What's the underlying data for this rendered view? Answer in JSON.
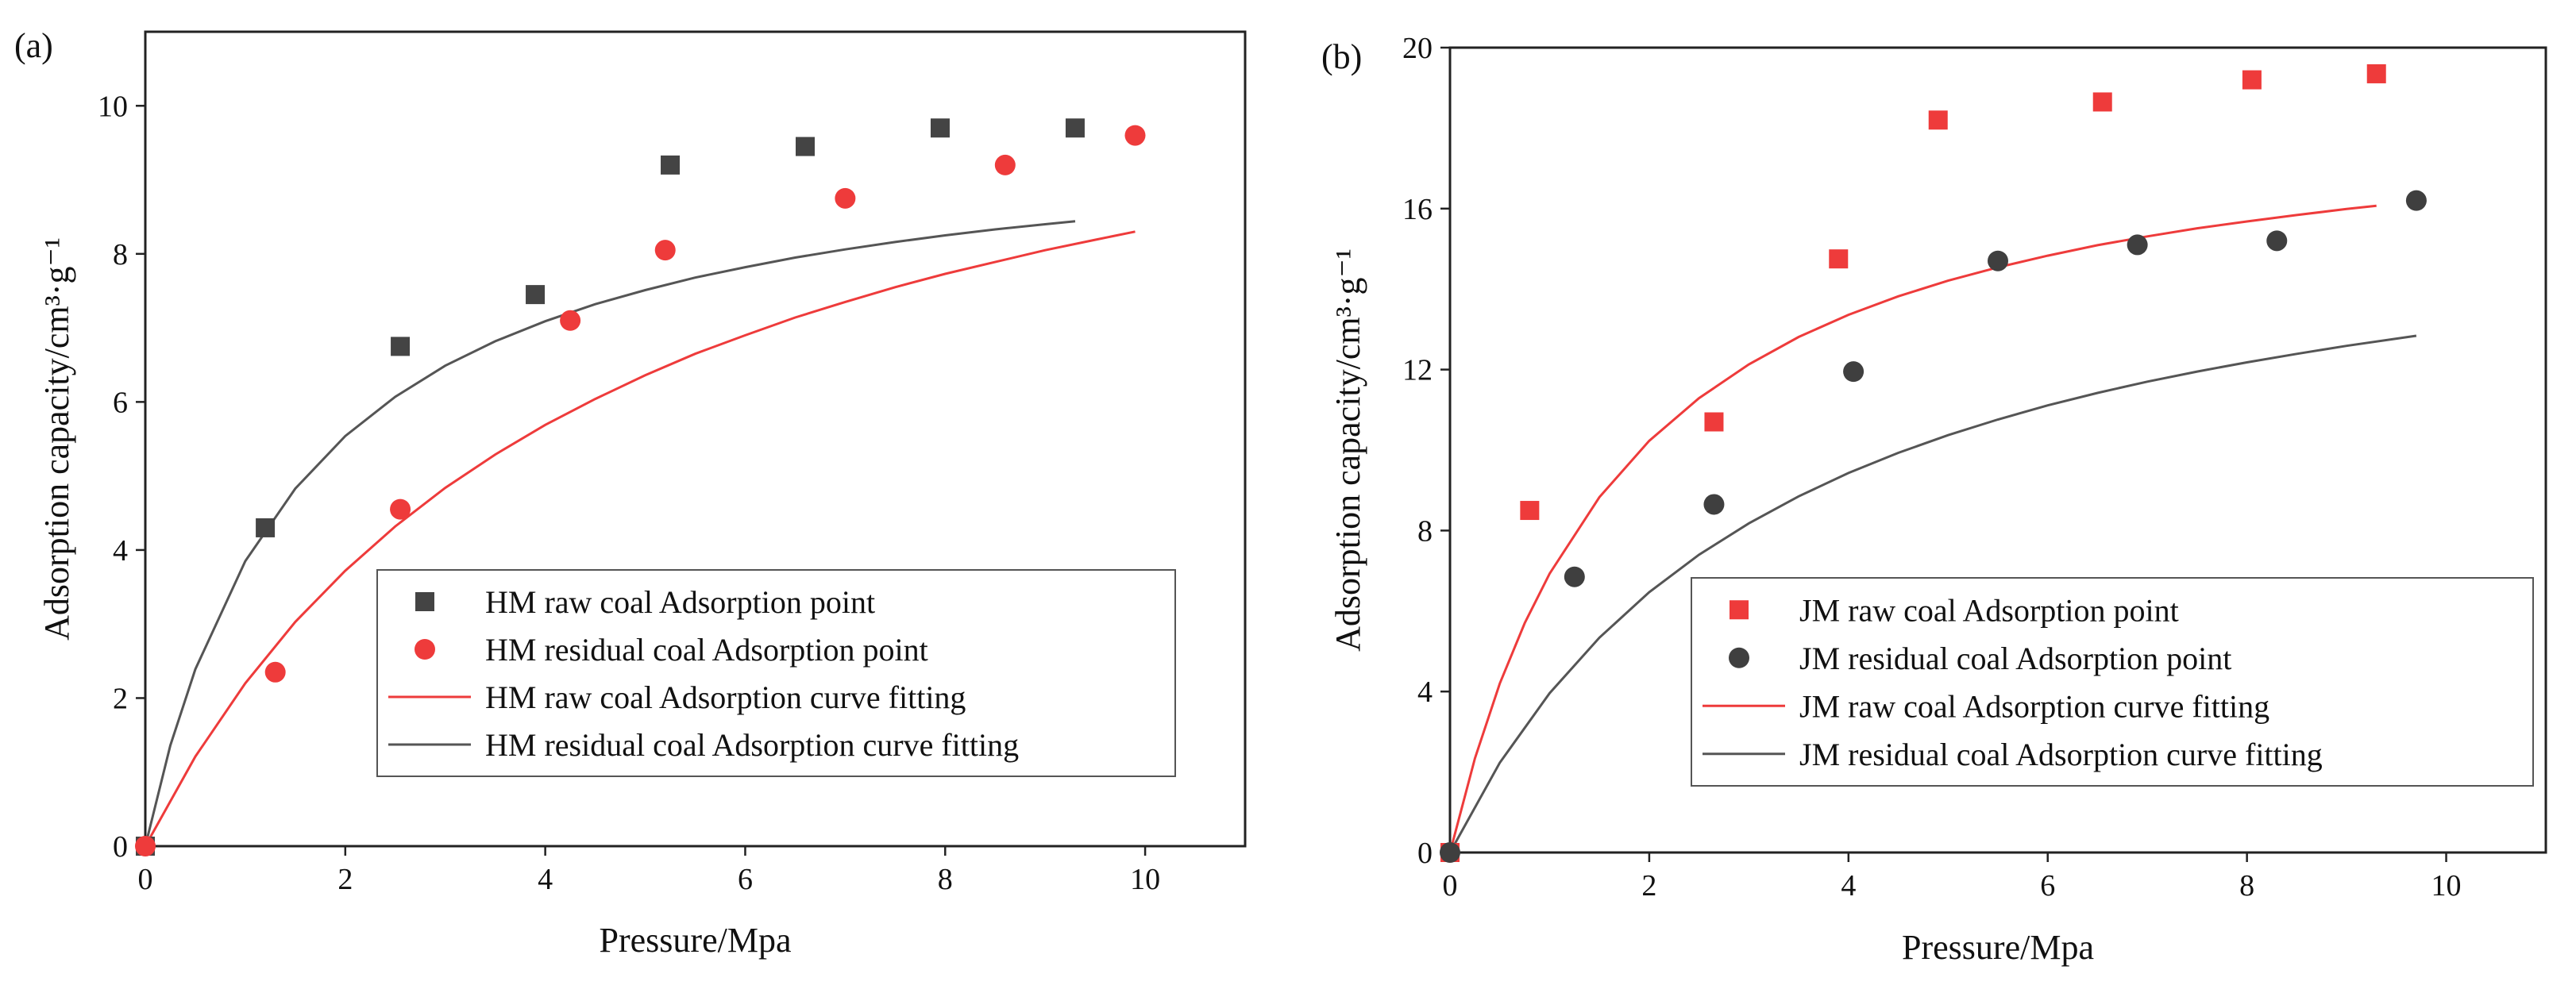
{
  "chart_data": [
    {
      "type": "scatter",
      "panel_label": "(a)",
      "xlabel": "Pressure/Mpa",
      "ylabel": "Adsorption capacity/cm³·g⁻¹",
      "xlim": [
        0,
        11
      ],
      "ylim": [
        0,
        11
      ],
      "xticks": [
        0,
        2,
        4,
        6,
        8,
        10
      ],
      "yticks": [
        0,
        2,
        4,
        6,
        8,
        10
      ],
      "legend_position": "bottom-right",
      "series": [
        {
          "name": "HM raw coal Adsorption point",
          "kind": "points",
          "marker": "square",
          "color": "#444444",
          "x": [
            0,
            1.2,
            2.55,
            3.9,
            5.25,
            6.6,
            7.95,
            9.3
          ],
          "y": [
            0,
            4.3,
            6.75,
            7.45,
            9.2,
            9.45,
            9.7,
            9.7
          ]
        },
        {
          "name": "HM residual coal Adsorption point",
          "kind": "points",
          "marker": "circle",
          "color": "#ee3b3b",
          "x": [
            0,
            1.3,
            2.55,
            4.25,
            5.2,
            7.0,
            8.6,
            9.9
          ],
          "y": [
            0,
            2.35,
            4.55,
            7.1,
            8.05,
            8.75,
            9.2,
            9.6
          ]
        },
        {
          "name": "HM raw coal Adsorption curve fitting",
          "kind": "line",
          "color": "#ee3b3b",
          "x": [
            0,
            0.5,
            1,
            1.5,
            2,
            2.5,
            3,
            3.5,
            4,
            4.5,
            5,
            5.5,
            6,
            6.5,
            7,
            7.5,
            8,
            8.5,
            9,
            9.5,
            9.9
          ],
          "y": [
            0,
            1.21,
            2.2,
            3.03,
            3.72,
            4.32,
            4.84,
            5.29,
            5.69,
            6.04,
            6.36,
            6.65,
            6.9,
            7.14,
            7.35,
            7.55,
            7.73,
            7.89,
            8.05,
            8.19,
            8.3
          ]
        },
        {
          "name": "HM residual coal Adsorption curve fitting",
          "kind": "line",
          "color": "#555555",
          "x": [
            0,
            0.25,
            0.5,
            1,
            1.5,
            2,
            2.5,
            3,
            3.5,
            4,
            4.5,
            5,
            5.5,
            6,
            6.5,
            7,
            7.5,
            8,
            8.5,
            9,
            9.3
          ],
          "y": [
            0,
            1.36,
            2.39,
            3.85,
            4.83,
            5.54,
            6.07,
            6.49,
            6.82,
            7.09,
            7.32,
            7.51,
            7.68,
            7.82,
            7.95,
            8.06,
            8.16,
            8.25,
            8.33,
            8.4,
            8.44
          ]
        }
      ]
    },
    {
      "type": "scatter",
      "panel_label": "(b)",
      "xlabel": "Pressure/Mpa",
      "ylabel": "Adsorption capacity/cm³·g⁻¹",
      "xlim": [
        0,
        11
      ],
      "ylim": [
        0,
        20
      ],
      "xticks": [
        0,
        2,
        4,
        6,
        8,
        10
      ],
      "yticks": [
        0,
        4,
        8,
        12,
        16,
        20
      ],
      "legend_position": "bottom-right",
      "series": [
        {
          "name": "JM raw coal Adsorption point",
          "kind": "points",
          "marker": "square",
          "color": "#ee3b3b",
          "x": [
            0,
            0.8,
            2.65,
            3.9,
            4.9,
            6.55,
            8.05,
            9.3
          ],
          "y": [
            0,
            8.5,
            10.7,
            14.75,
            18.2,
            18.65,
            19.2,
            19.35
          ]
        },
        {
          "name": "JM residual coal Adsorption point",
          "kind": "points",
          "marker": "circle",
          "color": "#3f3f3f",
          "x": [
            0,
            1.25,
            2.65,
            4.05,
            5.5,
            6.9,
            8.3,
            9.7
          ],
          "y": [
            0,
            6.85,
            8.65,
            11.95,
            14.7,
            15.1,
            15.2,
            16.2
          ]
        },
        {
          "name": "JM raw coal Adsorption curve fitting",
          "kind": "line",
          "color": "#ee3b3b",
          "x": [
            0,
            0.25,
            0.5,
            0.75,
            1,
            1.5,
            2,
            2.5,
            3,
            3.5,
            4,
            4.5,
            5,
            5.5,
            6,
            6.5,
            7,
            7.5,
            8,
            8.5,
            9,
            9.3
          ],
          "y": [
            0,
            2.34,
            4.2,
            5.7,
            6.93,
            8.83,
            10.23,
            11.29,
            12.13,
            12.81,
            13.36,
            13.82,
            14.21,
            14.54,
            14.83,
            15.09,
            15.31,
            15.51,
            15.68,
            15.84,
            15.99,
            16.07
          ]
        },
        {
          "name": "JM residual coal Adsorption curve fitting",
          "kind": "line",
          "color": "#555555",
          "x": [
            0,
            0.5,
            1,
            1.5,
            2,
            2.5,
            3,
            3.5,
            4,
            4.5,
            5,
            5.5,
            6,
            6.5,
            7,
            7.5,
            8,
            8.5,
            9,
            9.7
          ],
          "y": [
            0,
            2.23,
            3.96,
            5.34,
            6.47,
            7.4,
            8.18,
            8.85,
            9.43,
            9.93,
            10.37,
            10.76,
            11.11,
            11.42,
            11.7,
            11.95,
            12.18,
            12.39,
            12.59,
            12.84
          ]
        }
      ]
    }
  ]
}
